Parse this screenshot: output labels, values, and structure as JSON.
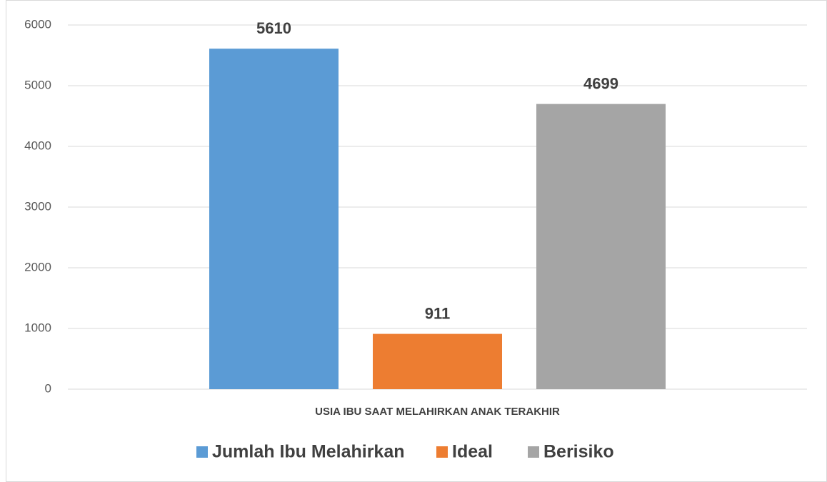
{
  "chart_data": {
    "type": "bar",
    "categories": [
      "USIA IBU SAAT MELAHIRKAN ANAK TERAKHIR"
    ],
    "series": [
      {
        "name": "Jumlah Ibu Melahirkan",
        "color": "#5b9bd5",
        "values": [
          5610
        ]
      },
      {
        "name": "Ideal",
        "color": "#ed7d31",
        "values": [
          911
        ]
      },
      {
        "name": "Berisiko",
        "color": "#a5a5a5",
        "values": [
          4699
        ]
      }
    ],
    "ylim": [
      0,
      6000
    ],
    "yticks": [
      0,
      1000,
      2000,
      3000,
      4000,
      5000,
      6000
    ],
    "grid": true,
    "legend": "bottom"
  }
}
